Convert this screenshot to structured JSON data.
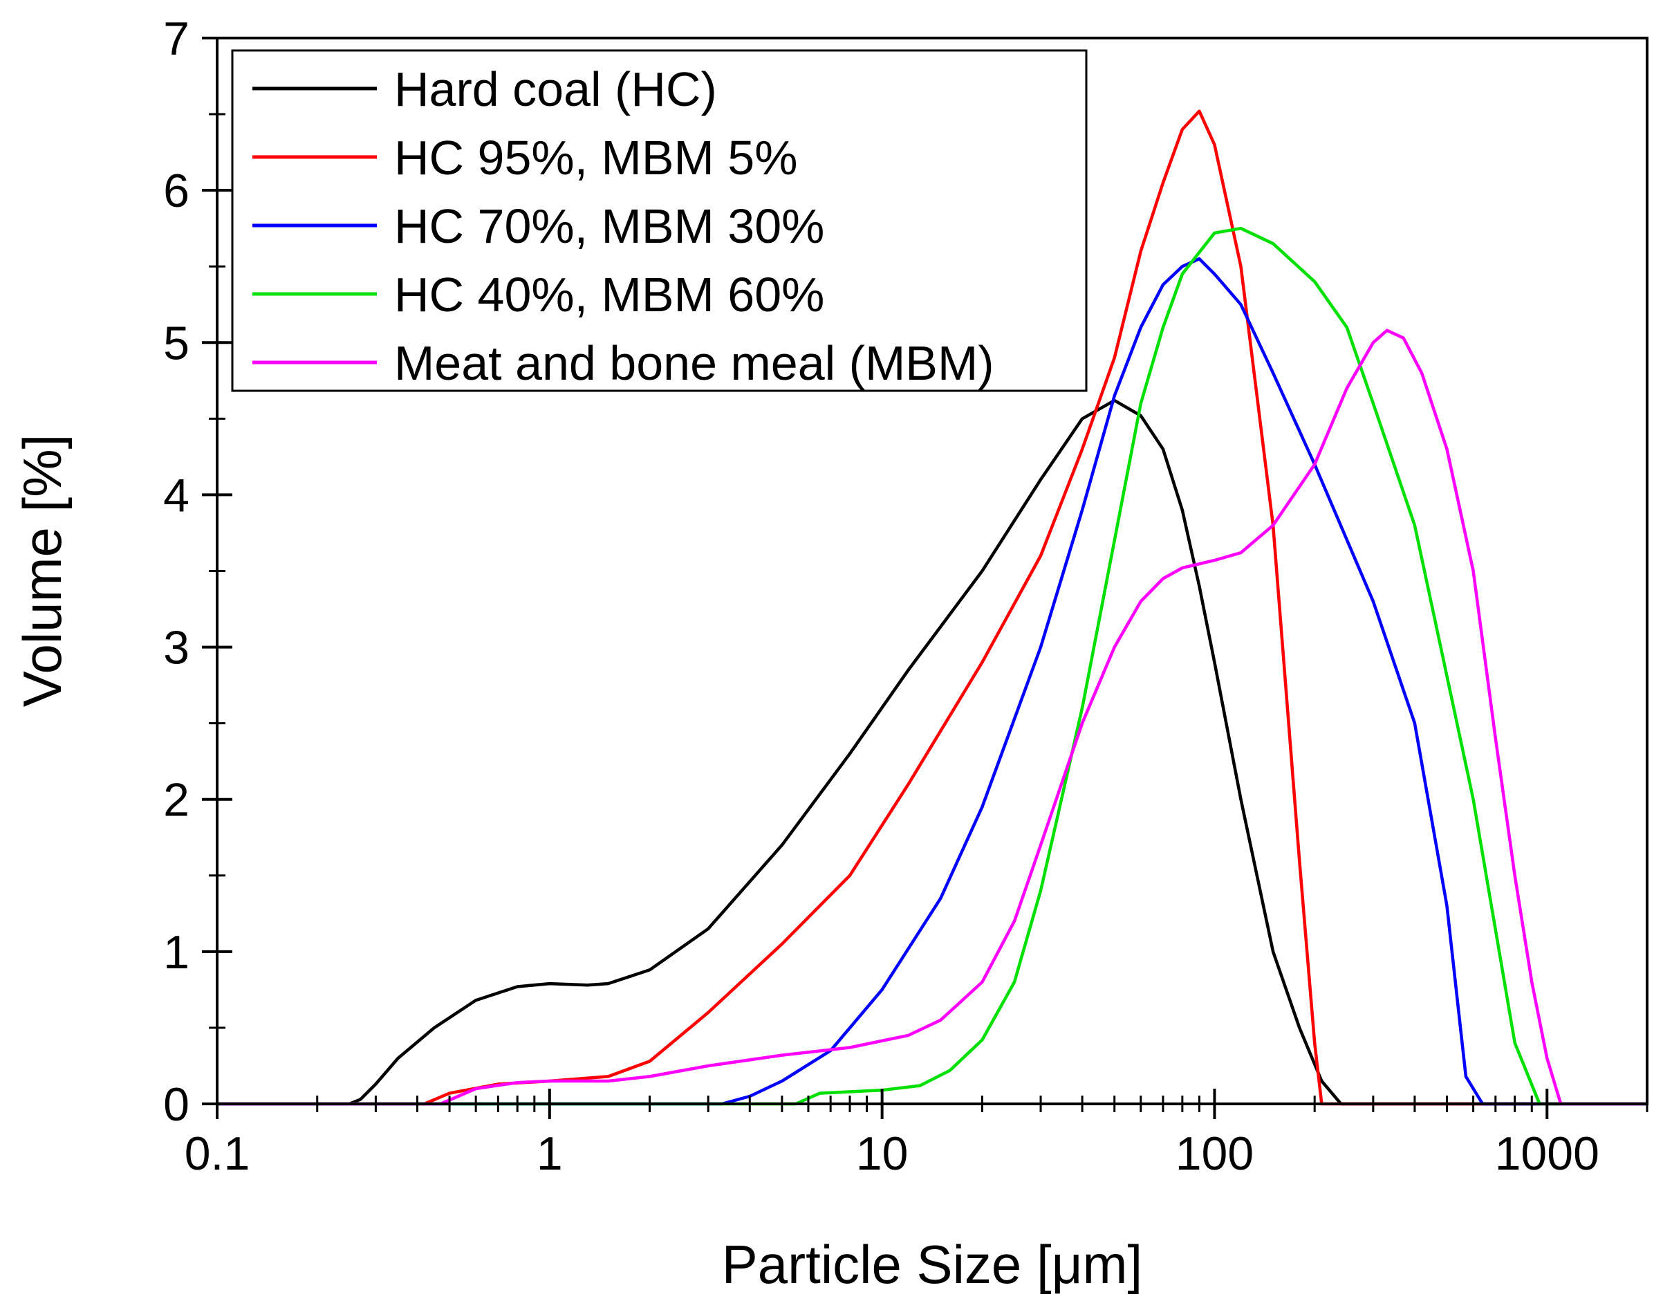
{
  "chart_data": {
    "type": "line",
    "title": "",
    "xlabel": "Particle Size [μm]",
    "ylabel": "Volume [%]",
    "xscale": "log",
    "xlim": [
      0.1,
      2000
    ],
    "ylim": [
      0,
      7
    ],
    "xticks": [
      {
        "value": 0.1,
        "label": "0.1"
      },
      {
        "value": 1,
        "label": "1"
      },
      {
        "value": 10,
        "label": "10"
      },
      {
        "value": 100,
        "label": "100"
      },
      {
        "value": 1000,
        "label": "1000"
      }
    ],
    "yticks": [
      {
        "value": 0,
        "label": "0"
      },
      {
        "value": 1,
        "label": "1"
      },
      {
        "value": 2,
        "label": "2"
      },
      {
        "value": 3,
        "label": "3"
      },
      {
        "value": 4,
        "label": "4"
      },
      {
        "value": 5,
        "label": "5"
      },
      {
        "value": 6,
        "label": "6"
      },
      {
        "value": 7,
        "label": "7"
      }
    ],
    "grid": false,
    "legend_position": "top-left",
    "series": [
      {
        "name": "Hard coal (HC)",
        "color": "#000000",
        "points": [
          [
            0.1,
            0
          ],
          [
            0.25,
            0
          ],
          [
            0.27,
            0.03
          ],
          [
            0.3,
            0.13
          ],
          [
            0.35,
            0.3
          ],
          [
            0.45,
            0.5
          ],
          [
            0.6,
            0.68
          ],
          [
            0.8,
            0.77
          ],
          [
            1.0,
            0.79
          ],
          [
            1.3,
            0.78
          ],
          [
            1.5,
            0.79
          ],
          [
            2.0,
            0.88
          ],
          [
            3.0,
            1.15
          ],
          [
            5.0,
            1.7
          ],
          [
            8.0,
            2.3
          ],
          [
            12.0,
            2.85
          ],
          [
            20.0,
            3.5
          ],
          [
            30.0,
            4.1
          ],
          [
            40.0,
            4.5
          ],
          [
            50.0,
            4.62
          ],
          [
            60.0,
            4.52
          ],
          [
            70.0,
            4.3
          ],
          [
            80.0,
            3.9
          ],
          [
            90.0,
            3.4
          ],
          [
            100.0,
            2.9
          ],
          [
            120.0,
            2.0
          ],
          [
            150.0,
            1.0
          ],
          [
            180.0,
            0.5
          ],
          [
            210.0,
            0.15
          ],
          [
            240.0,
            0
          ],
          [
            2000,
            0
          ]
        ]
      },
      {
        "name": "HC 95%, MBM 5%",
        "color": "#ff0000",
        "points": [
          [
            0.1,
            0
          ],
          [
            0.42,
            0
          ],
          [
            0.5,
            0.07
          ],
          [
            0.7,
            0.13
          ],
          [
            1.0,
            0.15
          ],
          [
            1.5,
            0.18
          ],
          [
            2.0,
            0.28
          ],
          [
            3.0,
            0.6
          ],
          [
            5.0,
            1.05
          ],
          [
            8.0,
            1.5
          ],
          [
            12.0,
            2.1
          ],
          [
            20.0,
            2.9
          ],
          [
            30.0,
            3.6
          ],
          [
            40.0,
            4.3
          ],
          [
            50.0,
            4.9
          ],
          [
            60.0,
            5.6
          ],
          [
            70.0,
            6.05
          ],
          [
            80.0,
            6.4
          ],
          [
            90.0,
            6.52
          ],
          [
            100.0,
            6.3
          ],
          [
            120.0,
            5.5
          ],
          [
            150.0,
            3.8
          ],
          [
            180.0,
            1.6
          ],
          [
            200.0,
            0.4
          ],
          [
            210.0,
            0
          ],
          [
            2000,
            0
          ]
        ]
      },
      {
        "name": "HC 70%, MBM 30%",
        "color": "#0000ff",
        "points": [
          [
            0.1,
            0
          ],
          [
            3.3,
            0
          ],
          [
            4.0,
            0.05
          ],
          [
            5.0,
            0.15
          ],
          [
            7.0,
            0.35
          ],
          [
            10.0,
            0.75
          ],
          [
            15.0,
            1.35
          ],
          [
            20.0,
            1.95
          ],
          [
            30.0,
            3.0
          ],
          [
            40.0,
            3.9
          ],
          [
            50.0,
            4.65
          ],
          [
            60.0,
            5.1
          ],
          [
            70.0,
            5.38
          ],
          [
            80.0,
            5.5
          ],
          [
            90.0,
            5.55
          ],
          [
            100.0,
            5.45
          ],
          [
            120.0,
            5.25
          ],
          [
            150.0,
            4.8
          ],
          [
            200.0,
            4.2
          ],
          [
            300.0,
            3.3
          ],
          [
            400.0,
            2.5
          ],
          [
            500.0,
            1.3
          ],
          [
            570.0,
            0.18
          ],
          [
            640.0,
            0
          ],
          [
            2000,
            0
          ]
        ]
      },
      {
        "name": "HC 40%, MBM 60%",
        "color": "#00e000",
        "points": [
          [
            0.1,
            0
          ],
          [
            5.5,
            0
          ],
          [
            6.5,
            0.07
          ],
          [
            10.0,
            0.09
          ],
          [
            13.0,
            0.12
          ],
          [
            16.0,
            0.22
          ],
          [
            20.0,
            0.42
          ],
          [
            25.0,
            0.8
          ],
          [
            30.0,
            1.4
          ],
          [
            40.0,
            2.6
          ],
          [
            50.0,
            3.7
          ],
          [
            60.0,
            4.6
          ],
          [
            70.0,
            5.1
          ],
          [
            80.0,
            5.45
          ],
          [
            100.0,
            5.72
          ],
          [
            120.0,
            5.75
          ],
          [
            150.0,
            5.65
          ],
          [
            200.0,
            5.4
          ],
          [
            250.0,
            5.1
          ],
          [
            300.0,
            4.6
          ],
          [
            400.0,
            3.8
          ],
          [
            600.0,
            2.0
          ],
          [
            800.0,
            0.4
          ],
          [
            950.0,
            0
          ],
          [
            2000,
            0
          ]
        ]
      },
      {
        "name": "Meat and bone meal (MBM)",
        "color": "#ff00ff",
        "points": [
          [
            0.1,
            0
          ],
          [
            0.47,
            0
          ],
          [
            0.6,
            0.1
          ],
          [
            0.8,
            0.14
          ],
          [
            1.0,
            0.15
          ],
          [
            1.5,
            0.15
          ],
          [
            2.0,
            0.18
          ],
          [
            3.0,
            0.25
          ],
          [
            5.0,
            0.32
          ],
          [
            8.0,
            0.37
          ],
          [
            12.0,
            0.45
          ],
          [
            15.0,
            0.55
          ],
          [
            20.0,
            0.8
          ],
          [
            25.0,
            1.2
          ],
          [
            30.0,
            1.7
          ],
          [
            40.0,
            2.5
          ],
          [
            50.0,
            3.0
          ],
          [
            60.0,
            3.3
          ],
          [
            70.0,
            3.45
          ],
          [
            80.0,
            3.52
          ],
          [
            100.0,
            3.57
          ],
          [
            120.0,
            3.62
          ],
          [
            150.0,
            3.8
          ],
          [
            200.0,
            4.2
          ],
          [
            250.0,
            4.7
          ],
          [
            300.0,
            5.0
          ],
          [
            330.0,
            5.08
          ],
          [
            370.0,
            5.03
          ],
          [
            420.0,
            4.8
          ],
          [
            500.0,
            4.3
          ],
          [
            600.0,
            3.5
          ],
          [
            700.0,
            2.4
          ],
          [
            800.0,
            1.5
          ],
          [
            900.0,
            0.8
          ],
          [
            1000.0,
            0.3
          ],
          [
            1100.0,
            0
          ],
          [
            2000,
            0
          ]
        ]
      }
    ]
  }
}
